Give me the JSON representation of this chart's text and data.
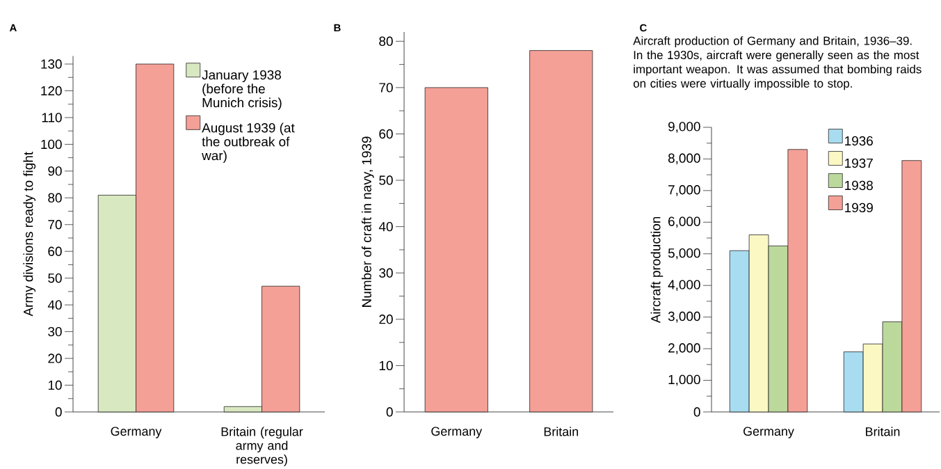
{
  "chart_data": [
    {
      "type": "bar",
      "title": "A",
      "ylabel": "Army divisions ready to fight",
      "categories": [
        "Germany",
        "Britain (regular army and reserves)"
      ],
      "series": [
        {
          "name": "January 1938 (before the Munich crisis)",
          "color": "#d8e8c0",
          "values": [
            81,
            2
          ]
        },
        {
          "name": "August 1939 (at the outbreak of war)",
          "color": "#f4a097",
          "values": [
            130,
            47
          ]
        }
      ],
      "ylim": [
        0,
        133
      ],
      "yticks": [
        0,
        {
          "value": 5,
          "label": null
        },
        10,
        {
          "value": 15,
          "label": null
        },
        20,
        {
          "value": 25,
          "label": null
        },
        30,
        {
          "value": 35,
          "label": null
        },
        40,
        {
          "value": 45,
          "label": null
        },
        50,
        {
          "value": 55,
          "label": null
        },
        60,
        {
          "value": 65,
          "label": null
        },
        70,
        {
          "value": 75,
          "label": null
        },
        80,
        {
          "value": 85,
          "label": null
        },
        90,
        {
          "value": 95,
          "label": null
        },
        100,
        {
          "value": 105,
          "label": null
        },
        110,
        {
          "value": 115,
          "label": null
        },
        120,
        {
          "value": 125,
          "label": null
        },
        130
      ],
      "legend": "top right"
    },
    {
      "type": "bar",
      "title": "B",
      "ylabel": "Number of craft in navy, 1939",
      "categories": [
        "Germany",
        "Britain"
      ],
      "values": [
        70,
        78
      ],
      "color": "#f4a097",
      "ylim": [
        0,
        82
      ],
      "yticks": [
        0,
        {
          "value": 5,
          "label": null
        },
        10,
        {
          "value": 15,
          "label": null
        },
        20,
        {
          "value": 25,
          "label": null
        },
        30,
        {
          "value": 35,
          "label": null
        },
        40,
        {
          "value": 45,
          "label": null
        },
        50,
        {
          "value": 55,
          "label": null
        },
        60,
        {
          "value": 65,
          "label": null
        },
        70,
        {
          "value": 75,
          "label": null
        },
        80
      ]
    },
    {
      "type": "bar",
      "title": "C",
      "subtitle": "Aircraft production of Germany and Britain, 1936–39. In the 1930s, aircraft were generally seen as the most important weapon. It was assumed that bombing raids on cities were virtually impossible to stop.",
      "ylabel": "Aircraft production",
      "categories": [
        "Germany",
        "Britain"
      ],
      "series": [
        {
          "name": "1936",
          "color": "#a8dcf0",
          "values": [
            5100,
            1900
          ]
        },
        {
          "name": "1937",
          "color": "#fbf8c4",
          "values": [
            5600,
            2150
          ]
        },
        {
          "name": "1938",
          "color": "#bcd99c",
          "values": [
            5250,
            2850
          ]
        },
        {
          "name": "1939",
          "color": "#f4a097",
          "values": [
            8300,
            7950
          ]
        }
      ],
      "ylim": [
        0,
        9000
      ],
      "yticks": [
        0,
        {
          "value": 500,
          "label": null
        },
        {
          "value": 1000,
          "label": "1,000"
        },
        {
          "value": 1500,
          "label": null
        },
        {
          "value": 2000,
          "label": "2,000"
        },
        {
          "value": 2500,
          "label": null
        },
        {
          "value": 3000,
          "label": "3,000"
        },
        {
          "value": 3500,
          "label": null
        },
        {
          "value": 4000,
          "label": "4,000"
        },
        {
          "value": 4500,
          "label": null
        },
        {
          "value": 5000,
          "label": "5,000"
        },
        {
          "value": 5500,
          "label": null
        },
        {
          "value": 6000,
          "label": "6,000"
        },
        {
          "value": 6500,
          "label": null
        },
        {
          "value": 7000,
          "label": "7,000"
        },
        {
          "value": 7500,
          "label": null
        },
        {
          "value": 8000,
          "label": "8,000"
        },
        {
          "value": 8500,
          "label": null
        },
        {
          "value": 9000,
          "label": "9,000"
        }
      ],
      "legend": "top right"
    }
  ]
}
